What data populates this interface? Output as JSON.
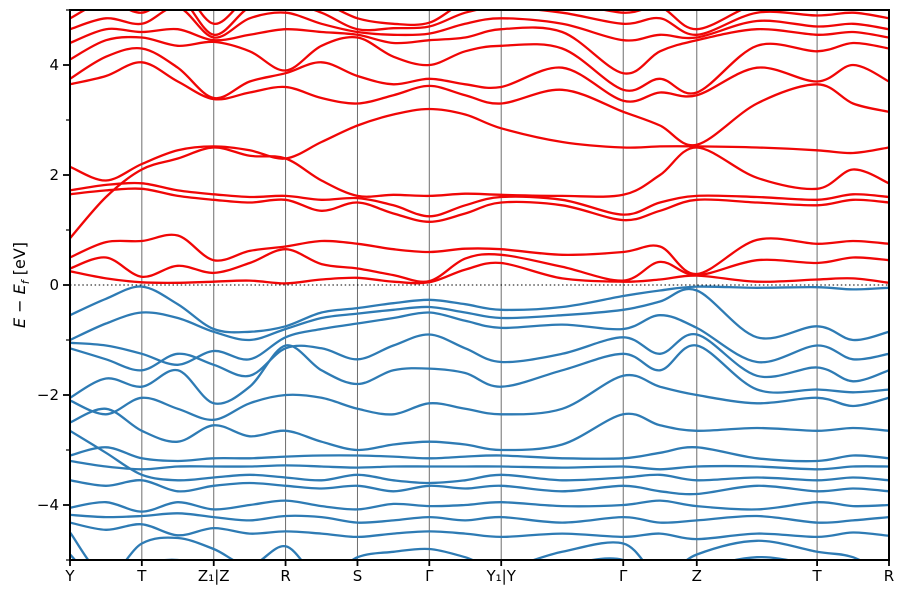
{
  "chart_data": {
    "type": "line",
    "subtype": "electronic-band-structure",
    "title": "",
    "xlabel": "",
    "y_axis": {
      "label_prefix": "E − E",
      "label_subscript": "f",
      "label_unit": " [eV]"
    },
    "ylim": [
      -5,
      5
    ],
    "grid": "vertical-lines-at-kpoints",
    "legend": "none",
    "fermi_level": 0,
    "fermi_line_style": "dotted",
    "colors": {
      "conduction": "#f00606",
      "valence": "#2e7bb4",
      "grid": "#6e6e6e",
      "fermi_line": "#000000",
      "axis": "#000000"
    },
    "yticks_major": [
      {
        "value": 4,
        "label": "4"
      },
      {
        "value": 2,
        "label": "2"
      },
      {
        "value": 0,
        "label": "0"
      },
      {
        "value": -2,
        "label": "−2"
      },
      {
        "value": -4,
        "label": "−4"
      }
    ],
    "yticks_minor": [
      5,
      3,
      1,
      -1,
      -3,
      -5
    ],
    "kpoints": [
      {
        "label": "Y",
        "x": 0.0
      },
      {
        "label": "T",
        "x": 0.0877
      },
      {
        "label": "Z₁|Z",
        "x": 0.1755
      },
      {
        "label": "R",
        "x": 0.2632
      },
      {
        "label": "S",
        "x": 0.351
      },
      {
        "label": "Γ",
        "x": 0.4387
      },
      {
        "label": "Y₁|Y",
        "x": 0.5265
      },
      {
        "label": "Γ",
        "x": 0.6755
      },
      {
        "label": "Z",
        "x": 0.7653
      },
      {
        "label": "T",
        "x": 0.9122
      },
      {
        "label": "R",
        "x": 1.0
      }
    ],
    "x_samples": [
      0.0,
      0.0439,
      0.0877,
      0.1316,
      0.1755,
      0.2194,
      0.2632,
      0.3071,
      0.351,
      0.3949,
      0.4387,
      0.4826,
      0.5265,
      0.601,
      0.6755,
      0.7204,
      0.7653,
      0.8388,
      0.9122,
      0.9561,
      1.0
    ],
    "series": [
      {
        "name": "conduction-bands",
        "color_key": "conduction",
        "bands": [
          [
            0.25,
            0.12,
            0.05,
            0.04,
            0.06,
            0.08,
            0.03,
            0.1,
            0.13,
            0.06,
            0.05,
            0.28,
            0.4,
            0.12,
            0.06,
            0.1,
            0.17,
            0.06,
            0.1,
            0.12,
            0.04
          ],
          [
            0.3,
            0.5,
            0.15,
            0.35,
            0.22,
            0.4,
            0.65,
            0.38,
            0.3,
            0.18,
            0.07,
            0.48,
            0.55,
            0.33,
            0.08,
            0.42,
            0.18,
            0.45,
            0.4,
            0.5,
            0.45
          ],
          [
            0.5,
            0.78,
            0.8,
            0.9,
            0.45,
            0.62,
            0.7,
            0.8,
            0.75,
            0.65,
            0.6,
            0.66,
            0.65,
            0.55,
            0.6,
            0.7,
            0.2,
            0.82,
            0.75,
            0.8,
            0.75
          ],
          [
            1.65,
            1.72,
            1.75,
            1.62,
            1.55,
            1.5,
            1.55,
            1.35,
            1.5,
            1.3,
            1.15,
            1.3,
            1.5,
            1.45,
            1.18,
            1.35,
            1.55,
            1.5,
            1.45,
            1.55,
            1.5
          ],
          [
            1.72,
            1.82,
            1.85,
            1.72,
            1.65,
            1.6,
            1.62,
            1.55,
            1.58,
            1.45,
            1.25,
            1.45,
            1.6,
            1.55,
            1.28,
            1.5,
            1.62,
            1.6,
            1.55,
            1.65,
            1.6
          ],
          [
            0.85,
            1.6,
            2.1,
            2.3,
            2.5,
            2.35,
            2.3,
            1.9,
            1.62,
            1.64,
            1.62,
            1.66,
            1.64,
            1.62,
            1.64,
            2.0,
            2.5,
            1.95,
            1.75,
            2.1,
            1.85
          ],
          [
            2.15,
            1.9,
            2.2,
            2.45,
            2.52,
            2.45,
            2.3,
            2.6,
            2.9,
            3.1,
            3.2,
            3.1,
            2.85,
            2.6,
            2.5,
            2.52,
            2.52,
            2.5,
            2.45,
            2.4,
            2.5
          ],
          [
            3.65,
            3.8,
            4.05,
            3.7,
            3.38,
            3.5,
            3.6,
            3.4,
            3.3,
            3.45,
            3.62,
            3.45,
            3.3,
            3.55,
            3.15,
            2.9,
            2.55,
            3.3,
            3.65,
            3.3,
            3.15
          ],
          [
            3.75,
            4.15,
            4.3,
            3.95,
            3.4,
            3.7,
            3.85,
            4.05,
            3.8,
            3.65,
            3.75,
            3.65,
            3.6,
            3.95,
            3.35,
            3.5,
            3.45,
            3.95,
            3.7,
            4.0,
            3.7
          ],
          [
            4.1,
            4.45,
            4.5,
            4.35,
            4.42,
            4.25,
            3.9,
            4.35,
            4.5,
            4.15,
            4.0,
            4.25,
            4.35,
            4.3,
            3.55,
            3.75,
            3.5,
            4.35,
            4.25,
            4.4,
            4.3
          ],
          [
            4.4,
            4.65,
            4.6,
            4.65,
            4.45,
            4.55,
            4.65,
            4.6,
            4.55,
            4.4,
            4.45,
            4.5,
            4.65,
            4.6,
            3.85,
            4.25,
            4.45,
            4.65,
            4.55,
            4.6,
            4.5
          ],
          [
            4.65,
            4.85,
            4.75,
            5.05,
            4.5,
            4.85,
            4.95,
            4.75,
            4.6,
            4.55,
            4.57,
            4.75,
            4.85,
            4.75,
            4.45,
            4.55,
            4.5,
            4.8,
            4.7,
            4.75,
            4.65
          ],
          [
            4.85,
            5.15,
            4.95,
            5.25,
            4.55,
            5.05,
            5.15,
            4.95,
            4.65,
            4.67,
            4.7,
            4.95,
            5.05,
            4.95,
            4.75,
            4.85,
            4.55,
            4.95,
            4.9,
            4.95,
            4.85
          ],
          [
            5.05,
            5.35,
            5.15,
            5.45,
            4.75,
            5.25,
            5.35,
            5.15,
            4.85,
            4.75,
            4.77,
            5.15,
            5.25,
            5.15,
            4.95,
            5.05,
            4.65,
            5.1,
            5.05,
            5.1,
            5.0
          ]
        ]
      },
      {
        "name": "valence-bands",
        "color_key": "valence",
        "bands": [
          [
            -0.55,
            -0.25,
            -0.03,
            -0.35,
            -0.8,
            -0.85,
            -0.75,
            -0.5,
            -0.42,
            -0.33,
            -0.27,
            -0.35,
            -0.45,
            -0.4,
            -0.2,
            -0.1,
            -0.03,
            -0.05,
            -0.04,
            -0.08,
            -0.05
          ],
          [
            -1.0,
            -0.7,
            -0.5,
            -0.6,
            -0.85,
            -1.0,
            -0.8,
            -0.6,
            -0.52,
            -0.45,
            -0.4,
            -0.5,
            -0.6,
            -0.55,
            -0.45,
            -0.3,
            -0.1,
            -0.95,
            -0.75,
            -1.0,
            -0.85
          ],
          [
            -1.05,
            -1.1,
            -1.25,
            -1.45,
            -1.2,
            -1.35,
            -0.95,
            -0.8,
            -0.7,
            -0.6,
            -0.5,
            -0.65,
            -0.78,
            -0.72,
            -0.8,
            -0.55,
            -0.78,
            -1.4,
            -1.1,
            -1.35,
            -1.25
          ],
          [
            -1.15,
            -1.35,
            -1.55,
            -1.25,
            -1.45,
            -1.65,
            -1.15,
            -1.15,
            -1.35,
            -1.1,
            -0.9,
            -1.15,
            -1.4,
            -1.25,
            -0.95,
            -1.25,
            -0.9,
            -1.65,
            -1.5,
            -1.75,
            -1.55
          ],
          [
            -2.05,
            -1.7,
            -1.85,
            -1.55,
            -2.15,
            -1.85,
            -1.1,
            -1.55,
            -1.8,
            -1.55,
            -1.52,
            -1.6,
            -1.85,
            -1.55,
            -1.25,
            -1.55,
            -1.1,
            -1.9,
            -1.9,
            -1.95,
            -1.9
          ],
          [
            -2.1,
            -2.35,
            -2.05,
            -2.25,
            -2.45,
            -2.15,
            -2.0,
            -2.05,
            -2.25,
            -2.35,
            -2.15,
            -2.25,
            -2.35,
            -2.25,
            -1.65,
            -1.85,
            -2.0,
            -2.15,
            -2.05,
            -2.2,
            -2.05
          ],
          [
            -2.5,
            -2.25,
            -2.65,
            -2.85,
            -2.55,
            -2.75,
            -2.65,
            -2.85,
            -3.0,
            -2.9,
            -2.85,
            -2.9,
            -3.0,
            -2.9,
            -2.35,
            -2.55,
            -2.65,
            -2.6,
            -2.65,
            -2.6,
            -2.65
          ],
          [
            -3.1,
            -2.95,
            -3.15,
            -3.2,
            -3.15,
            -3.15,
            -3.12,
            -3.1,
            -3.1,
            -3.12,
            -3.15,
            -3.12,
            -3.1,
            -3.15,
            -3.15,
            -3.05,
            -2.95,
            -3.15,
            -3.2,
            -3.1,
            -3.15
          ],
          [
            -3.2,
            -3.3,
            -3.35,
            -3.3,
            -3.3,
            -3.3,
            -3.28,
            -3.3,
            -3.32,
            -3.3,
            -3.3,
            -3.3,
            -3.3,
            -3.32,
            -3.3,
            -3.35,
            -3.3,
            -3.3,
            -3.35,
            -3.3,
            -3.3
          ],
          [
            -2.65,
            -3.05,
            -3.45,
            -3.55,
            -3.5,
            -3.45,
            -3.5,
            -3.55,
            -3.45,
            -3.55,
            -3.6,
            -3.55,
            -3.45,
            -3.55,
            -3.5,
            -3.45,
            -3.55,
            -3.5,
            -3.55,
            -3.5,
            -3.55
          ],
          [
            -3.55,
            -3.65,
            -3.55,
            -3.75,
            -3.65,
            -3.6,
            -3.65,
            -3.7,
            -3.65,
            -3.75,
            -3.65,
            -3.7,
            -3.65,
            -3.75,
            -3.65,
            -3.75,
            -3.8,
            -3.65,
            -3.75,
            -3.7,
            -3.75
          ],
          [
            -4.05,
            -3.95,
            -4.12,
            -3.95,
            -4.08,
            -4.0,
            -3.92,
            -4.02,
            -4.08,
            -3.98,
            -4.02,
            -4.0,
            -3.95,
            -4.02,
            -4.0,
            -3.92,
            -4.02,
            -4.08,
            -3.95,
            -4.02,
            -4.0
          ],
          [
            -4.18,
            -4.22,
            -4.2,
            -4.15,
            -4.22,
            -4.28,
            -4.2,
            -4.22,
            -4.32,
            -4.28,
            -4.22,
            -4.28,
            -4.22,
            -4.32,
            -4.22,
            -4.32,
            -4.28,
            -4.2,
            -4.32,
            -4.28,
            -4.22
          ],
          [
            -4.32,
            -4.45,
            -4.35,
            -4.55,
            -4.42,
            -4.52,
            -4.48,
            -4.52,
            -4.58,
            -4.52,
            -4.48,
            -4.52,
            -4.58,
            -4.52,
            -4.58,
            -4.52,
            -4.62,
            -4.52,
            -4.58,
            -4.5,
            -4.56
          ],
          [
            -4.5,
            -5.3,
            -4.7,
            -4.6,
            -4.8,
            -5.1,
            -4.75,
            -5.35,
            -4.95,
            -4.85,
            -4.8,
            -4.95,
            -5.15,
            -4.85,
            -4.7,
            -5.3,
            -4.9,
            -4.65,
            -4.85,
            -4.95,
            -5.3
          ],
          [
            -4.9,
            -5.5,
            -5.1,
            -5.0,
            -5.2,
            -5.4,
            -5.05,
            -5.6,
            -5.2,
            -5.1,
            -5.05,
            -5.2,
            -5.4,
            -5.1,
            -5.0,
            -5.6,
            -5.2,
            -4.95,
            -5.1,
            -5.2,
            -5.5
          ]
        ]
      }
    ]
  }
}
